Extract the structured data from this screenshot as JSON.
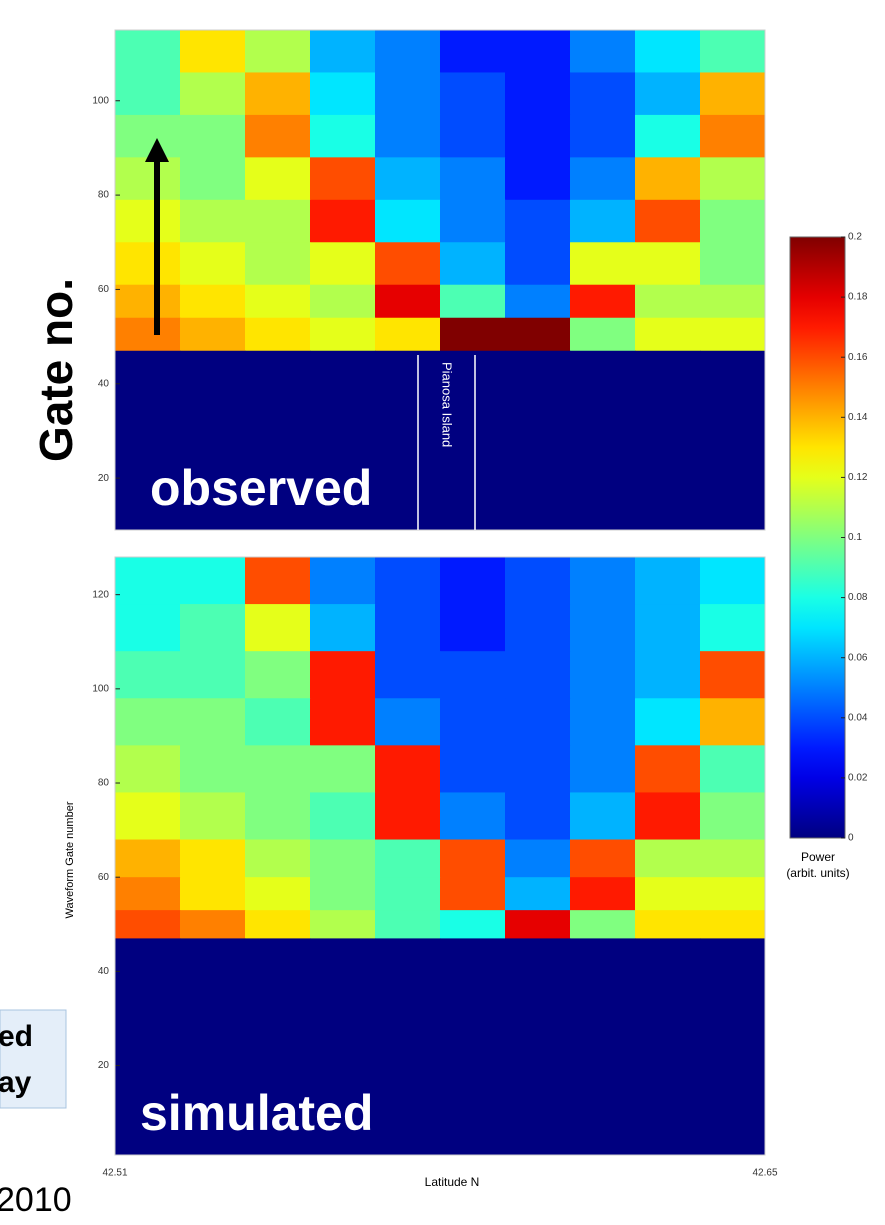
{
  "chart_data": [
    {
      "type": "heatmap",
      "ylabel": "Gate no.",
      "annotation": "observed",
      "island_label": "Pianosa Island",
      "xlim": [
        42.51,
        42.65
      ],
      "ylim": [
        9,
        115
      ],
      "yticks": [
        20,
        40,
        60,
        80,
        100
      ],
      "x_edges": [
        42.51,
        42.524,
        42.538,
        42.552,
        42.566,
        42.58,
        42.594,
        42.608,
        42.622,
        42.636,
        42.65
      ],
      "y_edges": [
        115,
        106,
        97,
        88,
        79,
        70,
        61,
        54,
        47,
        9
      ],
      "colormap": "jet",
      "clim": [
        0,
        0.2
      ],
      "z": [
        [
          0.09,
          0.13,
          0.11,
          0.06,
          0.05,
          0.03,
          0.03,
          0.05,
          0.07,
          0.09
        ],
        [
          0.09,
          0.11,
          0.14,
          0.07,
          0.05,
          0.04,
          0.03,
          0.04,
          0.06,
          0.14
        ],
        [
          0.1,
          0.1,
          0.15,
          0.08,
          0.05,
          0.04,
          0.03,
          0.04,
          0.08,
          0.15
        ],
        [
          0.11,
          0.1,
          0.12,
          0.16,
          0.06,
          0.05,
          0.03,
          0.05,
          0.14,
          0.11
        ],
        [
          0.12,
          0.11,
          0.11,
          0.17,
          0.07,
          0.05,
          0.04,
          0.06,
          0.16,
          0.1
        ],
        [
          0.13,
          0.12,
          0.11,
          0.12,
          0.16,
          0.06,
          0.04,
          0.12,
          0.12,
          0.1
        ],
        [
          0.14,
          0.13,
          0.12,
          0.11,
          0.18,
          0.09,
          0.05,
          0.17,
          0.11,
          0.11
        ],
        [
          0.15,
          0.14,
          0.13,
          0.12,
          0.13,
          0.2,
          0.2,
          0.1,
          0.12,
          0.12
        ],
        [
          0,
          0,
          0,
          0,
          0,
          0,
          0,
          0,
          0,
          0
        ]
      ]
    },
    {
      "type": "heatmap",
      "ylabel": "Waveform Gate number",
      "xlabel": "Latitude N",
      "annotation": "simulated",
      "xlim": [
        42.51,
        42.65
      ],
      "xticks": [
        42.51,
        42.65
      ],
      "ylim": [
        1,
        128
      ],
      "yticks": [
        20,
        40,
        60,
        80,
        100,
        120
      ],
      "x_edges": [
        42.51,
        42.524,
        42.538,
        42.552,
        42.566,
        42.58,
        42.594,
        42.608,
        42.622,
        42.636,
        42.65
      ],
      "y_edges": [
        128,
        118,
        108,
        98,
        88,
        78,
        68,
        60,
        53,
        47,
        1
      ],
      "colormap": "jet",
      "clim": [
        0,
        0.2
      ],
      "z": [
        [
          0.08,
          0.08,
          0.16,
          0.05,
          0.04,
          0.03,
          0.04,
          0.05,
          0.06,
          0.07
        ],
        [
          0.08,
          0.09,
          0.12,
          0.06,
          0.04,
          0.03,
          0.04,
          0.05,
          0.06,
          0.08
        ],
        [
          0.09,
          0.09,
          0.1,
          0.17,
          0.04,
          0.04,
          0.04,
          0.05,
          0.06,
          0.16
        ],
        [
          0.1,
          0.1,
          0.09,
          0.17,
          0.05,
          0.04,
          0.04,
          0.05,
          0.07,
          0.14
        ],
        [
          0.11,
          0.1,
          0.1,
          0.1,
          0.17,
          0.04,
          0.04,
          0.05,
          0.16,
          0.09
        ],
        [
          0.12,
          0.11,
          0.1,
          0.09,
          0.17,
          0.05,
          0.04,
          0.06,
          0.17,
          0.1
        ],
        [
          0.14,
          0.13,
          0.11,
          0.1,
          0.09,
          0.16,
          0.05,
          0.16,
          0.11,
          0.11
        ],
        [
          0.15,
          0.13,
          0.12,
          0.1,
          0.09,
          0.16,
          0.06,
          0.17,
          0.12,
          0.12
        ],
        [
          0.16,
          0.15,
          0.13,
          0.11,
          0.09,
          0.08,
          0.18,
          0.1,
          0.13,
          0.13
        ],
        [
          0,
          0,
          0,
          0,
          0,
          0,
          0,
          0,
          0,
          0
        ]
      ]
    }
  ],
  "colorbar": {
    "label": [
      "Power",
      "(arbit. units)"
    ],
    "clim": [
      0,
      0.2
    ],
    "ticks": [
      0,
      0.02,
      0.04,
      0.06,
      0.08,
      0.1,
      0.12,
      0.14,
      0.16,
      0.18,
      0.2
    ]
  },
  "slide_fragments": [
    "ed",
    "ay",
    "2010"
  ]
}
